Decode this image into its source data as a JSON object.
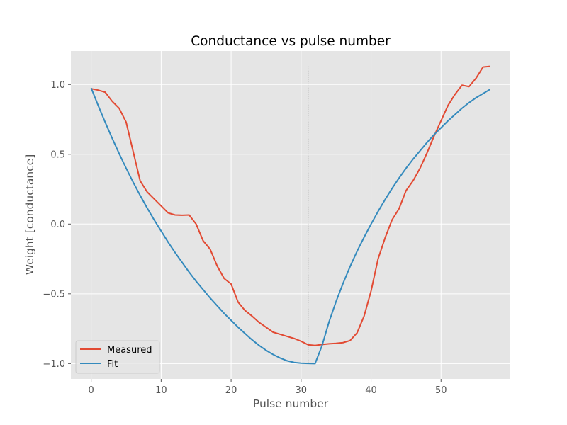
{
  "chart_data": {
    "type": "line",
    "title": "Conductance vs pulse number",
    "xlabel": "Pulse number",
    "ylabel": "Weight [conductance]",
    "xlim": [
      -2.9,
      59.9
    ],
    "ylim": [
      -1.11,
      1.24
    ],
    "xticks": [
      0,
      10,
      20,
      30,
      40,
      50
    ],
    "yticks": [
      -1.0,
      -0.5,
      0.0,
      0.5,
      1.0
    ],
    "xtick_labels": [
      "0",
      "10",
      "20",
      "30",
      "40",
      "50"
    ],
    "ytick_labels": [
      "−1.0",
      "−0.5",
      "0.0",
      "0.5",
      "1.0"
    ],
    "grid": true,
    "legend_position": "lower-left",
    "vline": {
      "x": 31,
      "y_top": 1.13,
      "y_bottom": -1.0,
      "style": "dotted",
      "color": "#000000"
    },
    "series": [
      {
        "name": "Measured",
        "color": "#E24A33",
        "x": [
          0,
          1,
          2,
          3,
          4,
          5,
          6,
          7,
          8,
          9,
          10,
          11,
          12,
          13,
          14,
          15,
          16,
          17,
          18,
          19,
          20,
          21,
          22,
          23,
          24,
          25,
          26,
          27,
          28,
          29,
          30,
          31,
          32,
          33,
          34,
          35,
          36,
          37,
          38,
          39,
          40,
          41,
          42,
          43,
          44,
          45,
          46,
          47,
          48,
          49,
          50,
          51,
          52,
          53,
          54,
          55,
          56,
          57
        ],
        "y": [
          0.97,
          0.96,
          0.945,
          0.88,
          0.83,
          0.73,
          0.52,
          0.31,
          0.23,
          0.18,
          0.13,
          0.08,
          0.065,
          0.063,
          0.065,
          0.0,
          -0.12,
          -0.18,
          -0.3,
          -0.39,
          -0.43,
          -0.56,
          -0.62,
          -0.66,
          -0.705,
          -0.74,
          -0.775,
          -0.79,
          -0.805,
          -0.82,
          -0.84,
          -0.865,
          -0.87,
          -0.863,
          -0.858,
          -0.855,
          -0.85,
          -0.835,
          -0.78,
          -0.66,
          -0.48,
          -0.25,
          -0.1,
          0.03,
          0.11,
          0.24,
          0.31,
          0.4,
          0.51,
          0.63,
          0.74,
          0.85,
          0.93,
          0.995,
          0.985,
          1.045,
          1.125,
          1.13
        ]
      },
      {
        "name": "Fit",
        "color": "#348ABD",
        "x": [
          0,
          1,
          2,
          3,
          4,
          5,
          6,
          7,
          8,
          9,
          10,
          11,
          12,
          13,
          14,
          15,
          16,
          17,
          18,
          19,
          20,
          21,
          22,
          23,
          24,
          25,
          26,
          27,
          28,
          29,
          30,
          31,
          32,
          33,
          34,
          35,
          36,
          37,
          38,
          39,
          40,
          41,
          42,
          43,
          44,
          45,
          46,
          47,
          48,
          49,
          50,
          51,
          52,
          53,
          54,
          55,
          56,
          57
        ],
        "y": [
          0.975,
          0.85,
          0.73,
          0.615,
          0.505,
          0.4,
          0.3,
          0.205,
          0.115,
          0.03,
          -0.05,
          -0.13,
          -0.205,
          -0.275,
          -0.345,
          -0.41,
          -0.47,
          -0.53,
          -0.585,
          -0.64,
          -0.69,
          -0.74,
          -0.785,
          -0.83,
          -0.87,
          -0.905,
          -0.935,
          -0.96,
          -0.98,
          -0.992,
          -0.997,
          -0.999,
          -1.0,
          -0.87,
          -0.7,
          -0.555,
          -0.425,
          -0.305,
          -0.195,
          -0.095,
          0.0,
          0.09,
          0.175,
          0.255,
          0.33,
          0.4,
          0.465,
          0.525,
          0.585,
          0.64,
          0.69,
          0.74,
          0.785,
          0.83,
          0.87,
          0.905,
          0.935,
          0.965
        ]
      }
    ]
  }
}
